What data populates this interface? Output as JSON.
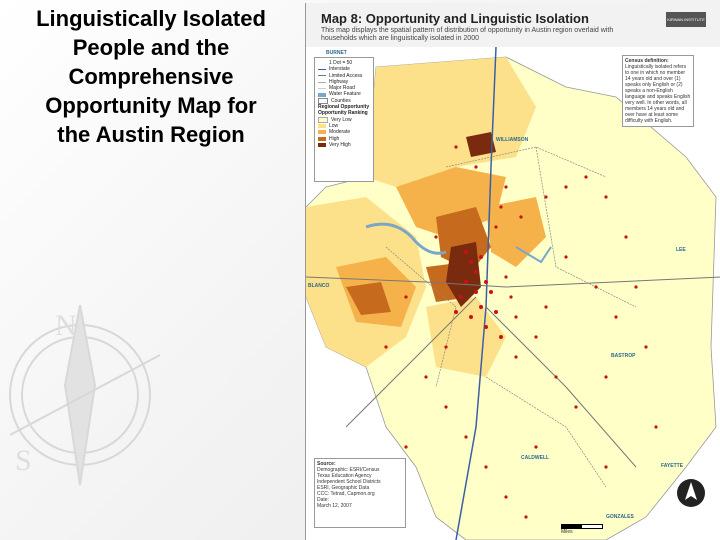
{
  "slide": {
    "title_lines": [
      "Linguistically Isolated",
      "People and the",
      "Comprehensive",
      "Opportunity Map for",
      "the Austin Region"
    ]
  },
  "map": {
    "title": "Map 8: Opportunity and Linguistic Isolation",
    "description": "This map displays the spatial pattern of distribution of opportunity in Austin region overlaid with households which are linguistically isolated in 2000",
    "logo_text": "KIRWAN INSTITUTE",
    "county_labels": [
      "WILLIAMSON",
      "BLANCO",
      "LEE",
      "BASTROP",
      "CALDWELL",
      "FAYETTE",
      "BURNET",
      "GONZALES"
    ],
    "legend": {
      "dot_label": "1 Dot = 50",
      "items": [
        "Interstate",
        "Limited Access",
        "Highway",
        "Major Road",
        "Water Feature",
        "Counties"
      ],
      "header1": "Regional Opportunity",
      "header2": "Opportunity Ranking",
      "ranks": [
        {
          "label": "Very Low",
          "color": "#ffffc8"
        },
        {
          "label": "Low",
          "color": "#fde18a"
        },
        {
          "label": "Moderate",
          "color": "#f6b24a"
        },
        {
          "label": "High",
          "color": "#c66a1e"
        },
        {
          "label": "Very High",
          "color": "#7a2a0e"
        }
      ]
    },
    "census_def": {
      "title": "Census definition:",
      "text": "Linguistically isolated refers to one in which no member 14 years old and over (1) speaks only English or (2) speaks a non-English language and speaks English very well. In other words, all members 14 years old and over have at least some difficulty with English."
    },
    "source": {
      "title": "Source:",
      "lines": [
        "Demographic: ESRI/Census",
        "Texas Education Agency",
        "Independent School Districts",
        "ESRI, Geographic Data",
        "CCC: Tetrad, Capmon.org",
        "Date:",
        "March 12, 2007"
      ]
    },
    "scale_text": "Miles"
  }
}
